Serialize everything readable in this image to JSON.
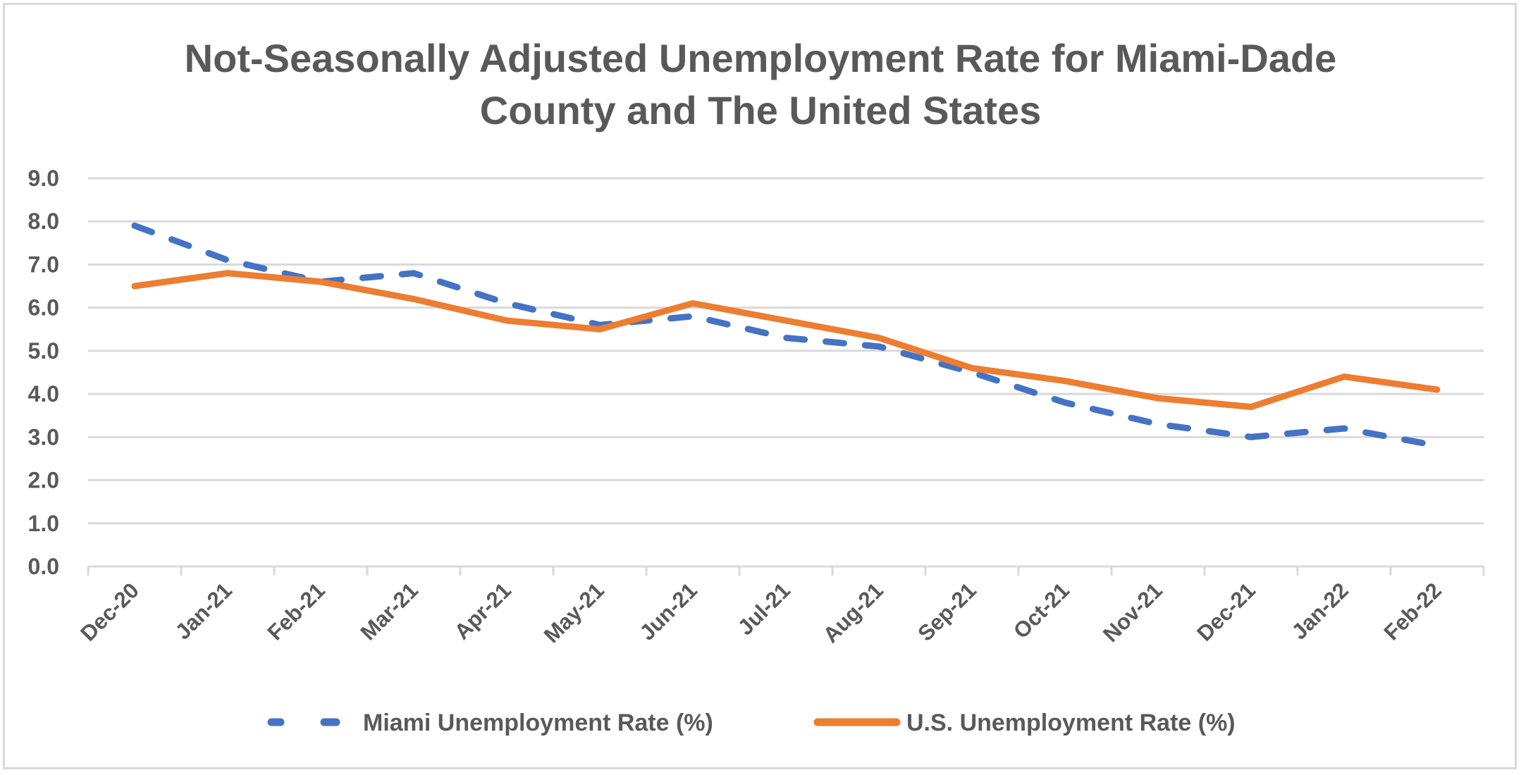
{
  "chart_data": {
    "type": "line",
    "title": "Not-Seasonally Adjusted Unemployment Rate for Miami-Dade County and The United States",
    "title_lines": [
      "Not-Seasonally Adjusted Unemployment Rate for Miami-Dade",
      "County and The United States"
    ],
    "xlabel": "",
    "ylabel": "",
    "ylim": [
      0,
      9
    ],
    "yticks": [
      "0.0",
      "1.0",
      "2.0",
      "3.0",
      "4.0",
      "5.0",
      "6.0",
      "7.0",
      "8.0",
      "9.0"
    ],
    "grid": true,
    "legend_position": "bottom",
    "categories": [
      "Dec-20",
      "Jan-21",
      "Feb-21",
      "Mar-21",
      "Apr-21",
      "May-21",
      "Jun-21",
      "Jul-21",
      "Aug-21",
      "Sep-21",
      "Oct-21",
      "Nov-21",
      "Dec-21",
      "Jan-22",
      "Feb-22"
    ],
    "series": [
      {
        "name": "Miami Unemployment Rate (%)",
        "color": "#4472c4",
        "style": "dashed",
        "values": [
          7.9,
          7.1,
          6.6,
          6.8,
          6.1,
          5.6,
          5.8,
          5.3,
          5.1,
          4.5,
          3.8,
          3.3,
          3.0,
          3.2,
          2.8
        ]
      },
      {
        "name": "U.S. Unemployment Rate (%)",
        "color": "#ed7d31",
        "style": "solid",
        "values": [
          6.5,
          6.8,
          6.6,
          6.2,
          5.7,
          5.5,
          6.1,
          5.7,
          5.3,
          4.6,
          4.3,
          3.9,
          3.7,
          4.4,
          4.1
        ]
      }
    ]
  }
}
